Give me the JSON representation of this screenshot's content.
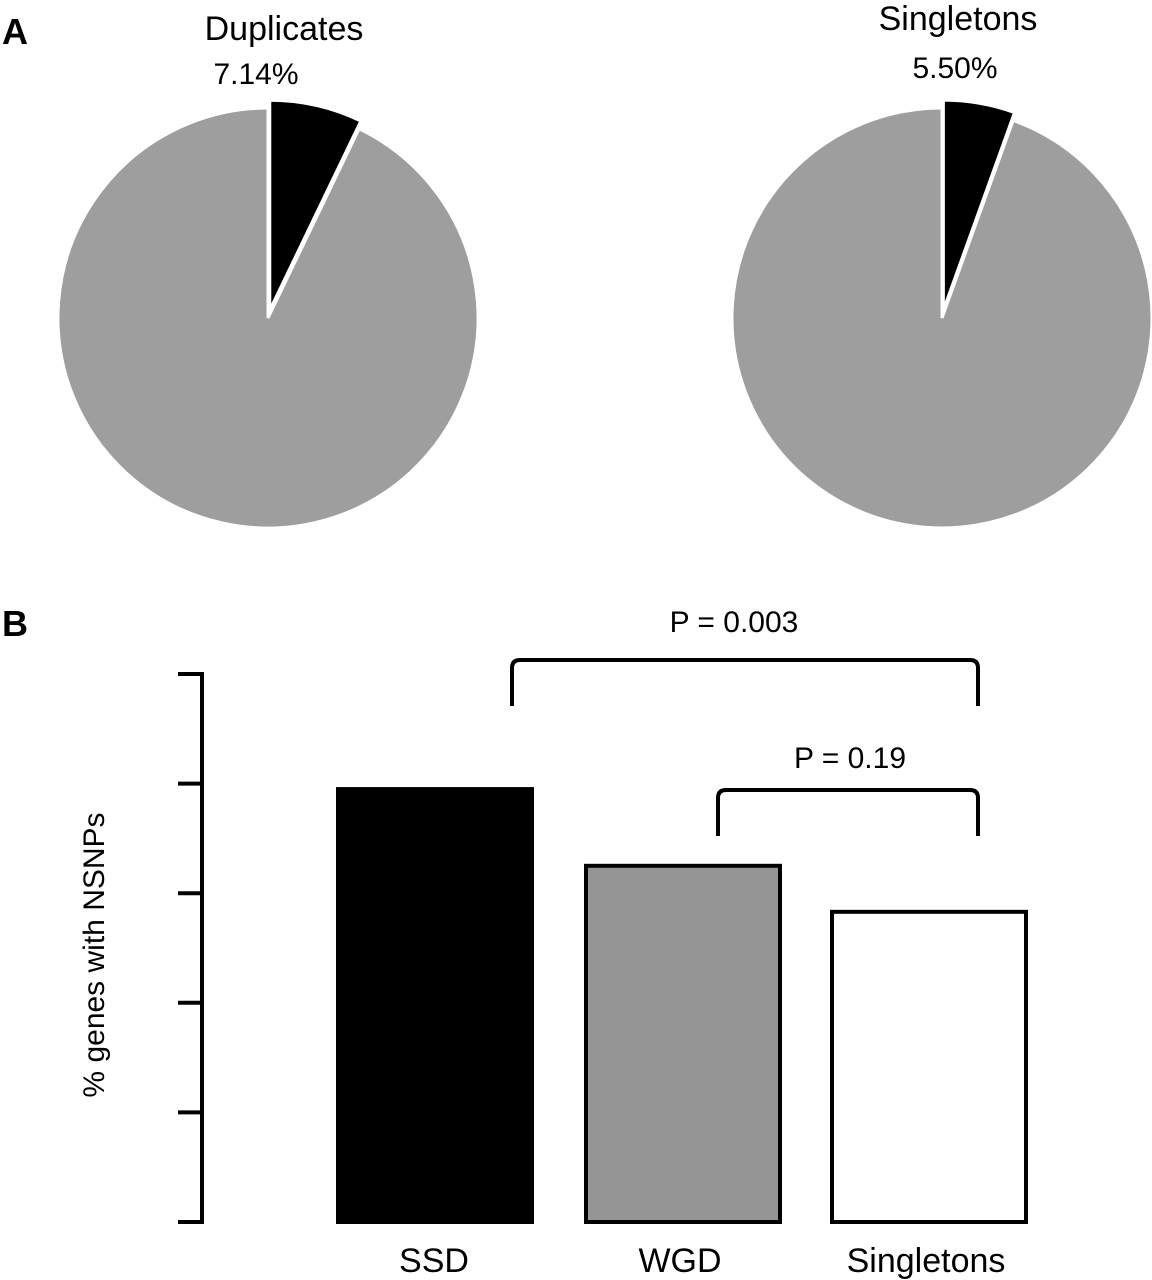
{
  "panel_a_label": "A",
  "panel_b_label": "B",
  "colors": {
    "minor_slice": "#000000",
    "major_slice": "#9e9e9e",
    "ssd_bar": "#000000",
    "wgd_bar": "#959595",
    "singletons_bar": "#ffffff",
    "stroke": "#000000"
  },
  "chart_data": [
    {
      "type": "pie",
      "title": "Duplicates",
      "slices": [
        {
          "value": 7.14,
          "label": "7.14%",
          "color": "#000000"
        },
        {
          "value": 92.86,
          "label": "",
          "color": "#9e9e9e"
        }
      ]
    },
    {
      "type": "pie",
      "title": "Singletons",
      "slices": [
        {
          "value": 5.5,
          "label": "5.50%",
          "color": "#000000"
        },
        {
          "value": 94.5,
          "label": "",
          "color": "#9e9e9e"
        }
      ]
    },
    {
      "type": "bar",
      "categories": [
        "SSD",
        "WGD",
        "Singletons"
      ],
      "values": [
        3.95,
        3.25,
        2.83
      ],
      "ylabel": "% genes with NSNPs",
      "ylim": [
        0,
        5
      ],
      "yticks": [
        0,
        1,
        2,
        3,
        4,
        5
      ],
      "ytick_labels_shown": false,
      "grid": false,
      "annotations": [
        {
          "text": "P = 0.003",
          "from": "SSD",
          "to": "Singletons"
        },
        {
          "text": "P = 0.19",
          "from": "WGD",
          "to": "Singletons"
        }
      ]
    }
  ]
}
